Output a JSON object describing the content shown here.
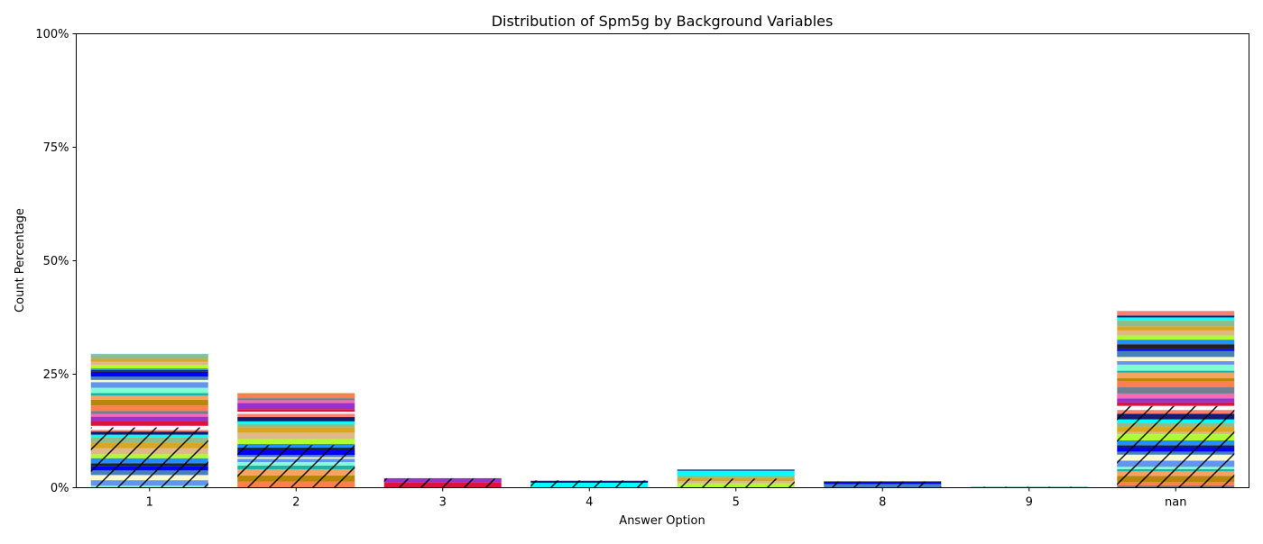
{
  "chart_data": {
    "type": "bar",
    "stacked": true,
    "title": "Distribution of Spm5g by Background Variables",
    "xlabel": "Answer Option",
    "ylabel": "Count Percentage",
    "ylim": [
      0,
      100
    ],
    "yticks": [
      0,
      25,
      50,
      75,
      100
    ],
    "ytick_labels": [
      "0%",
      "25%",
      "50%",
      "75%",
      "100%"
    ],
    "categories": [
      "1",
      "2",
      "3",
      "4",
      "5",
      "8",
      "9",
      "nan"
    ],
    "totals": [
      29.5,
      20.8,
      2.1,
      1.6,
      4.0,
      1.4,
      0.2,
      40.0
    ],
    "legend": "none",
    "grid": false,
    "palette": [
      "#7fffd4",
      "#ffffff",
      "#222222",
      "#ff7f50",
      "#8fbc8f",
      "#6495ed",
      "#dc143c",
      "#1e90ff",
      "#b8860b",
      "#00ffff",
      "#fafad2",
      "#9932cc",
      "#adff2f",
      "#f4a460",
      "#191970",
      "#4682b4",
      "#ff69b4",
      "#deb887",
      "#20b2aa",
      "#fa8072",
      "#0000ff",
      "#708090",
      "#daa520"
    ],
    "hatch_fraction": 0.45
  }
}
